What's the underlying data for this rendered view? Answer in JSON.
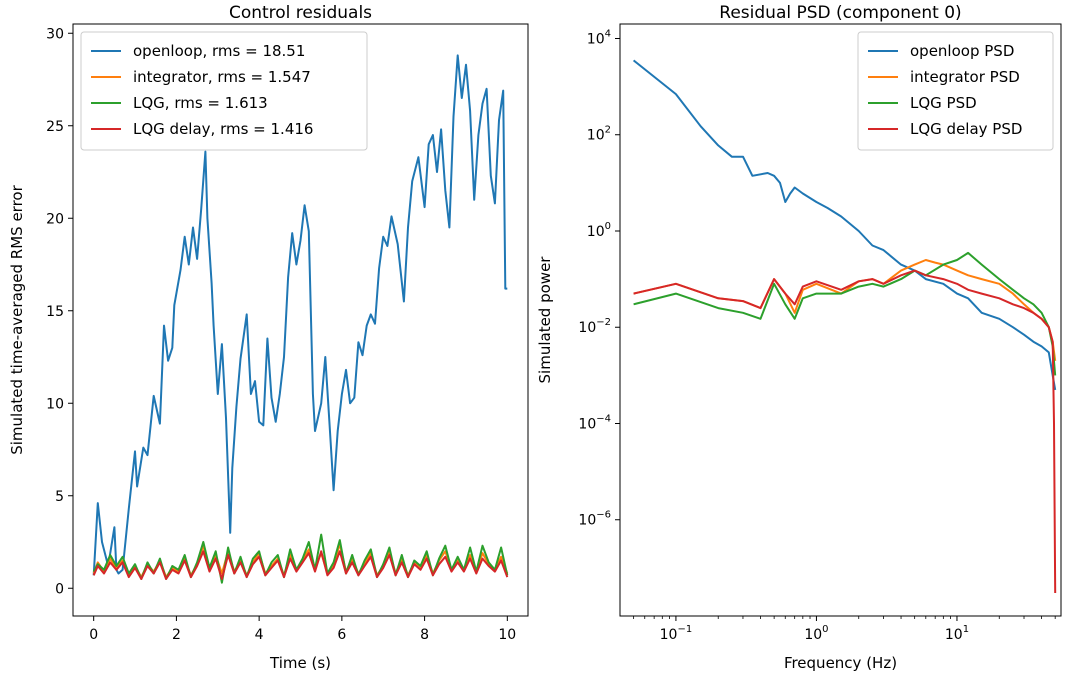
{
  "chart_data": [
    {
      "type": "line",
      "title": "Control residuals",
      "xlabel": "Time (s)",
      "ylabel": "Simulated time-averaged RMS error",
      "xlim": [
        -0.5,
        10.5
      ],
      "ylim": [
        -1.5,
        30.5
      ],
      "xscale": "linear",
      "yscale": "linear",
      "xticks": [
        0,
        2,
        4,
        6,
        8,
        10
      ],
      "xtick_labels": [
        "0",
        "2",
        "4",
        "6",
        "8",
        "10"
      ],
      "yticks": [
        0,
        5,
        10,
        15,
        20,
        25,
        30
      ],
      "ytick_labels": [
        "0",
        "5",
        "10",
        "15",
        "20",
        "25",
        "30"
      ],
      "grid": false,
      "legend_position": "top-left",
      "series": [
        {
          "name": "openloop, rms = 18.51",
          "color": "#1f77b4",
          "x": [
            0,
            0.1,
            0.2,
            0.35,
            0.5,
            0.55,
            0.6,
            0.7,
            0.85,
            1.0,
            1.05,
            1.2,
            1.3,
            1.45,
            1.6,
            1.7,
            1.8,
            1.9,
            1.95,
            2.1,
            2.2,
            2.3,
            2.4,
            2.5,
            2.6,
            2.7,
            2.75,
            2.85,
            2.9,
            3.0,
            3.1,
            3.2,
            3.3,
            3.35,
            3.45,
            3.55,
            3.7,
            3.8,
            3.9,
            4.0,
            4.1,
            4.2,
            4.3,
            4.4,
            4.5,
            4.6,
            4.7,
            4.8,
            4.9,
            5.0,
            5.1,
            5.2,
            5.3,
            5.35,
            5.5,
            5.6,
            5.7,
            5.8,
            5.9,
            6.0,
            6.1,
            6.2,
            6.3,
            6.4,
            6.5,
            6.6,
            6.7,
            6.8,
            6.9,
            7.0,
            7.1,
            7.2,
            7.35,
            7.5,
            7.6,
            7.7,
            7.85,
            8.0,
            8.1,
            8.2,
            8.3,
            8.4,
            8.5,
            8.6,
            8.7,
            8.8,
            8.9,
            9.0,
            9.1,
            9.2,
            9.3,
            9.4,
            9.5,
            9.6,
            9.7,
            9.8,
            9.9,
            9.95,
            10.0
          ],
          "y": [
            0.7,
            4.6,
            2.5,
            1.2,
            3.3,
            1.0,
            0.8,
            1.0,
            4.3,
            7.4,
            5.5,
            7.6,
            7.2,
            10.4,
            8.9,
            14.2,
            12.3,
            13.0,
            15.3,
            17.2,
            19.0,
            17.5,
            19.5,
            17.8,
            20.5,
            23.6,
            20.0,
            16.5,
            14.2,
            10.5,
            13.2,
            9.2,
            3.0,
            6.5,
            9.8,
            12.4,
            14.8,
            10.5,
            11.2,
            9.0,
            8.8,
            13.5,
            10.3,
            9.0,
            10.5,
            12.5,
            16.8,
            19.2,
            17.5,
            18.8,
            20.7,
            19.3,
            10.5,
            8.5,
            10.0,
            12.5,
            8.9,
            5.3,
            8.5,
            10.5,
            11.8,
            10.0,
            10.3,
            13.3,
            12.6,
            14.2,
            14.8,
            14.3,
            17.3,
            19.0,
            18.5,
            20.1,
            18.6,
            15.5,
            19.5,
            22.0,
            23.3,
            20.6,
            24.0,
            24.5,
            22.5,
            24.8,
            21.5,
            19.5,
            25.5,
            28.8,
            26.5,
            28.3,
            25.8,
            21.0,
            24.5,
            26.2,
            27.0,
            22.3,
            20.8,
            25.3,
            26.9,
            16.2,
            16.2
          ]
        },
        {
          "name": "integrator, rms = 1.547",
          "color": "#ff7f0e",
          "x": [
            0,
            0.1,
            0.25,
            0.4,
            0.55,
            0.7,
            0.85,
            1.0,
            1.15,
            1.3,
            1.45,
            1.6,
            1.75,
            1.9,
            2.05,
            2.2,
            2.35,
            2.5,
            2.65,
            2.8,
            2.95,
            3.1,
            3.25,
            3.4,
            3.55,
            3.7,
            3.85,
            4.0,
            4.15,
            4.3,
            4.45,
            4.6,
            4.75,
            4.9,
            5.05,
            5.2,
            5.35,
            5.5,
            5.65,
            5.8,
            5.95,
            6.1,
            6.25,
            6.4,
            6.55,
            6.7,
            6.85,
            7.0,
            7.15,
            7.3,
            7.45,
            7.6,
            7.75,
            7.9,
            8.05,
            8.2,
            8.35,
            8.5,
            8.65,
            8.8,
            8.95,
            9.1,
            9.25,
            9.4,
            9.55,
            9.7,
            9.85,
            10.0
          ],
          "y": [
            0.8,
            1.4,
            0.9,
            1.6,
            1.1,
            1.5,
            0.7,
            1.2,
            0.6,
            1.3,
            0.9,
            1.5,
            0.6,
            1.1,
            0.9,
            1.6,
            0.7,
            1.3,
            2.3,
            1.0,
            1.8,
            0.8,
            2.0,
            0.9,
            1.5,
            0.7,
            1.4,
            1.9,
            0.8,
            1.2,
            1.6,
            0.7,
            1.8,
            1.0,
            1.5,
            2.1,
            1.1,
            1.9,
            0.8,
            1.2,
            2.4,
            0.9,
            1.6,
            0.8,
            1.3,
            1.9,
            0.7,
            1.2,
            2.0,
            0.8,
            1.6,
            0.7,
            1.4,
            1.1,
            1.8,
            0.8,
            1.5,
            2.0,
            1.0,
            1.5,
            1.0,
            1.8,
            0.9,
            1.9,
            1.3,
            1.0,
            1.7,
            0.8
          ]
        },
        {
          "name": "LQG, rms = 1.613",
          "color": "#2ca02c",
          "x": [
            0,
            0.1,
            0.25,
            0.4,
            0.55,
            0.7,
            0.85,
            1.0,
            1.15,
            1.3,
            1.45,
            1.6,
            1.75,
            1.9,
            2.05,
            2.2,
            2.35,
            2.5,
            2.65,
            2.8,
            2.95,
            3.1,
            3.25,
            3.4,
            3.55,
            3.7,
            3.85,
            4.0,
            4.15,
            4.3,
            4.45,
            4.6,
            4.75,
            4.9,
            5.05,
            5.2,
            5.35,
            5.5,
            5.65,
            5.8,
            5.95,
            6.1,
            6.25,
            6.4,
            6.55,
            6.7,
            6.85,
            7.0,
            7.15,
            7.3,
            7.45,
            7.6,
            7.75,
            7.9,
            8.05,
            8.2,
            8.35,
            8.5,
            8.65,
            8.8,
            8.95,
            9.1,
            9.25,
            9.4,
            9.55,
            9.7,
            9.85,
            10.0
          ],
          "y": [
            0.9,
            1.3,
            1.0,
            1.8,
            1.2,
            1.7,
            0.8,
            1.3,
            0.5,
            1.4,
            0.8,
            1.6,
            0.5,
            1.2,
            1.0,
            1.8,
            0.6,
            1.4,
            2.5,
            1.1,
            2.0,
            0.3,
            2.2,
            0.8,
            1.7,
            0.6,
            1.6,
            2.0,
            0.7,
            1.4,
            1.8,
            0.6,
            2.1,
            1.0,
            1.6,
            2.5,
            1.0,
            2.9,
            0.8,
            1.4,
            2.6,
            0.8,
            1.8,
            0.7,
            1.5,
            2.1,
            0.6,
            1.3,
            2.2,
            0.7,
            1.8,
            0.6,
            1.5,
            1.2,
            2.0,
            0.7,
            1.6,
            2.3,
            1.0,
            1.7,
            1.0,
            2.2,
            0.9,
            2.3,
            1.4,
            1.0,
            2.2,
            0.7
          ]
        },
        {
          "name": "LQG delay, rms = 1.416",
          "color": "#d62728",
          "x": [
            0,
            0.1,
            0.25,
            0.4,
            0.55,
            0.7,
            0.85,
            1.0,
            1.15,
            1.3,
            1.45,
            1.6,
            1.75,
            1.9,
            2.05,
            2.2,
            2.35,
            2.5,
            2.65,
            2.8,
            2.95,
            3.1,
            3.25,
            3.4,
            3.55,
            3.7,
            3.85,
            4.0,
            4.15,
            4.3,
            4.45,
            4.6,
            4.75,
            4.9,
            5.05,
            5.2,
            5.35,
            5.5,
            5.65,
            5.8,
            5.95,
            6.1,
            6.25,
            6.4,
            6.55,
            6.7,
            6.85,
            7.0,
            7.15,
            7.3,
            7.45,
            7.6,
            7.75,
            7.9,
            8.05,
            8.2,
            8.35,
            8.5,
            8.65,
            8.8,
            8.95,
            9.1,
            9.25,
            9.4,
            9.55,
            9.7,
            9.85,
            10.0
          ],
          "y": [
            0.7,
            1.2,
            0.8,
            1.4,
            1.0,
            1.4,
            0.6,
            1.1,
            0.5,
            1.2,
            0.8,
            1.4,
            0.5,
            1.0,
            0.8,
            1.5,
            0.6,
            1.2,
            2.0,
            0.9,
            1.6,
            0.5,
            1.8,
            0.8,
            1.4,
            0.6,
            1.3,
            1.7,
            0.7,
            1.1,
            1.5,
            0.6,
            1.6,
            0.9,
            1.4,
            1.9,
            0.9,
            2.0,
            0.7,
            1.1,
            2.0,
            0.8,
            1.4,
            0.7,
            1.2,
            1.7,
            0.6,
            1.1,
            1.8,
            0.7,
            1.4,
            0.6,
            1.3,
            1.0,
            1.6,
            0.7,
            1.3,
            1.7,
            0.9,
            1.4,
            0.9,
            1.6,
            0.8,
            1.6,
            1.2,
            0.9,
            1.5,
            0.6
          ]
        }
      ]
    },
    {
      "type": "line",
      "title": "Residual PSD (component 0)",
      "xlabel": "Frequency (Hz)",
      "ylabel": "Simulated power",
      "xscale": "log",
      "yscale": "log",
      "xlim": [
        0.04,
        55
      ],
      "ylim": [
        1e-08,
        20000
      ],
      "xticks": [
        0.1,
        1,
        10
      ],
      "xtick_labels": [
        {
          "base": "10",
          "exp": "−1"
        },
        {
          "base": "10",
          "exp": "0"
        },
        {
          "base": "10",
          "exp": "1"
        }
      ],
      "yticks": [
        1e-06,
        0.0001,
        0.01,
        1,
        100,
        10000
      ],
      "ytick_labels": [
        {
          "base": "10",
          "exp": "−6"
        },
        {
          "base": "10",
          "exp": "−4"
        },
        {
          "base": "10",
          "exp": "−2"
        },
        {
          "base": "10",
          "exp": "0"
        },
        {
          "base": "10",
          "exp": "2"
        },
        {
          "base": "10",
          "exp": "4"
        }
      ],
      "grid": false,
      "legend_position": "top-right",
      "series": [
        {
          "name": "openloop PSD",
          "color": "#1f77b4",
          "x": [
            0.05,
            0.1,
            0.15,
            0.2,
            0.25,
            0.3,
            0.35,
            0.45,
            0.5,
            0.55,
            0.6,
            0.65,
            0.7,
            0.8,
            1.0,
            1.2,
            1.5,
            2.0,
            2.5,
            3.0,
            4.0,
            5.0,
            6.0,
            8.0,
            10.0,
            12.0,
            15.0,
            20.0,
            25.0,
            30.0,
            35.0,
            40.0,
            45.0,
            48.0,
            50.0
          ],
          "y": [
            3500,
            700,
            150,
            60,
            35,
            35,
            14,
            16,
            14,
            10,
            4,
            6,
            8,
            6,
            4,
            3,
            2,
            1,
            0.5,
            0.4,
            0.2,
            0.15,
            0.1,
            0.08,
            0.05,
            0.04,
            0.02,
            0.015,
            0.01,
            0.007,
            0.005,
            0.004,
            0.003,
            0.001,
            0.0005
          ]
        },
        {
          "name": "integrator PSD",
          "color": "#ff7f0e",
          "x": [
            0.05,
            0.1,
            0.2,
            0.3,
            0.4,
            0.5,
            0.6,
            0.7,
            0.8,
            1.0,
            1.5,
            2.0,
            2.5,
            3.0,
            4.0,
            5.0,
            6.0,
            7.0,
            8.0,
            10.0,
            12.0,
            15.0,
            20.0,
            25.0,
            30.0,
            35.0,
            40.0,
            45.0,
            48.0,
            50.0
          ],
          "y": [
            0.05,
            0.08,
            0.04,
            0.035,
            0.025,
            0.1,
            0.05,
            0.02,
            0.06,
            0.08,
            0.05,
            0.09,
            0.1,
            0.08,
            0.15,
            0.2,
            0.25,
            0.22,
            0.2,
            0.15,
            0.12,
            0.1,
            0.08,
            0.05,
            0.03,
            0.02,
            0.015,
            0.01,
            0.005,
            0.002
          ]
        },
        {
          "name": "LQG PSD",
          "color": "#2ca02c",
          "x": [
            0.05,
            0.1,
            0.2,
            0.3,
            0.4,
            0.5,
            0.6,
            0.7,
            0.8,
            1.0,
            1.5,
            2.0,
            2.5,
            3.0,
            4.0,
            5.0,
            6.0,
            8.0,
            10.0,
            12.0,
            15.0,
            20.0,
            25.0,
            30.0,
            35.0,
            40.0,
            45.0,
            48.0,
            50.0
          ],
          "y": [
            0.03,
            0.05,
            0.025,
            0.02,
            0.015,
            0.08,
            0.03,
            0.015,
            0.04,
            0.05,
            0.05,
            0.07,
            0.08,
            0.07,
            0.1,
            0.15,
            0.12,
            0.2,
            0.25,
            0.35,
            0.2,
            0.1,
            0.06,
            0.04,
            0.03,
            0.02,
            0.01,
            0.004,
            0.001
          ]
        },
        {
          "name": "LQG delay PSD",
          "color": "#d62728",
          "x": [
            0.05,
            0.1,
            0.2,
            0.3,
            0.4,
            0.5,
            0.6,
            0.7,
            0.8,
            1.0,
            1.5,
            2.0,
            2.5,
            3.0,
            4.0,
            5.0,
            6.0,
            8.0,
            10.0,
            12.0,
            15.0,
            20.0,
            25.0,
            30.0,
            35.0,
            40.0,
            45.0,
            48.0,
            49.0,
            50.0
          ],
          "y": [
            0.05,
            0.08,
            0.04,
            0.035,
            0.025,
            0.1,
            0.05,
            0.03,
            0.07,
            0.09,
            0.06,
            0.09,
            0.1,
            0.08,
            0.12,
            0.15,
            0.12,
            0.1,
            0.08,
            0.06,
            0.05,
            0.04,
            0.03,
            0.025,
            0.02,
            0.015,
            0.01,
            0.005,
            0.0001,
            3e-08
          ]
        }
      ]
    }
  ]
}
